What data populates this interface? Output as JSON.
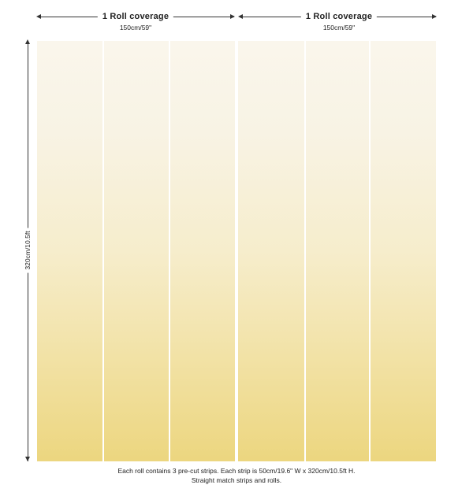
{
  "coverage": [
    {
      "title": "1 Roll coverage",
      "size": "150cm/59\""
    },
    {
      "title": "1 Roll coverage",
      "size": "150cm/59\""
    }
  ],
  "height_label": "320cm/10.5ft",
  "caption": {
    "line1": "Each roll contains 3 pre-cut strips.  Each strip is 50cm/19.6\" W x 320cm/10.5ft H.",
    "line2": "Straight match strips and rolls."
  },
  "colors": {
    "gradient_top": "#faf6ec",
    "gradient_bottom": "#ecd67f",
    "line": "#333333"
  },
  "rolls": 2,
  "strips_per_roll": 3
}
